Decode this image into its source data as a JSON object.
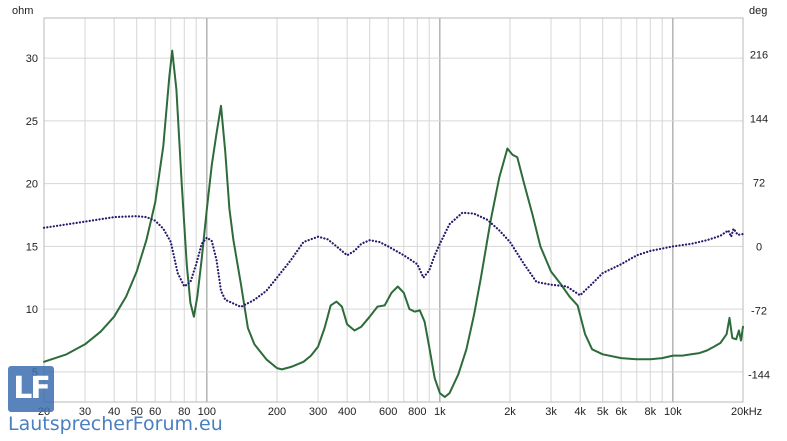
{
  "chart_data": {
    "type": "line",
    "title": "",
    "xlabel": "",
    "x_scale": "log",
    "xlim": [
      20,
      20000
    ],
    "x_ticks": [
      {
        "v": 20,
        "label": "20"
      },
      {
        "v": 30,
        "label": "30"
      },
      {
        "v": 40,
        "label": "40"
      },
      {
        "v": 50,
        "label": "50"
      },
      {
        "v": 60,
        "label": "60"
      },
      {
        "v": 80,
        "label": "80"
      },
      {
        "v": 100,
        "label": "100"
      },
      {
        "v": 200,
        "label": "200"
      },
      {
        "v": 300,
        "label": "300"
      },
      {
        "v": 400,
        "label": "400"
      },
      {
        "v": 600,
        "label": "600"
      },
      {
        "v": 800,
        "label": "800"
      },
      {
        "v": 1000,
        "label": "1k"
      },
      {
        "v": 2000,
        "label": "2k"
      },
      {
        "v": 3000,
        "label": "3k"
      },
      {
        "v": 4000,
        "label": "4k"
      },
      {
        "v": 5000,
        "label": "5k"
      },
      {
        "v": 6000,
        "label": "6k"
      },
      {
        "v": 8000,
        "label": "8k"
      },
      {
        "v": 10000,
        "label": "10k"
      },
      {
        "v": 20000,
        "label": "20kHz"
      }
    ],
    "y_left": {
      "unit": "ohm",
      "lim": [
        2.6,
        33.2
      ],
      "ticks": [
        5,
        10,
        15,
        20,
        25,
        30
      ]
    },
    "y_right": {
      "unit": "deg",
      "lim": [
        -175,
        257
      ],
      "ticks": [
        -144,
        -72,
        0,
        72,
        144,
        216
      ]
    },
    "grid": true,
    "series": [
      {
        "axis": "left",
        "color": "#2e6b3a",
        "style": "solid",
        "points": [
          [
            20,
            5.8
          ],
          [
            25,
            6.4
          ],
          [
            30,
            7.2
          ],
          [
            35,
            8.2
          ],
          [
            40,
            9.4
          ],
          [
            45,
            11.0
          ],
          [
            50,
            13.0
          ],
          [
            55,
            15.5
          ],
          [
            60,
            18.5
          ],
          [
            65,
            23.0
          ],
          [
            69,
            28.5
          ],
          [
            71,
            30.6
          ],
          [
            74,
            27.5
          ],
          [
            78,
            20.0
          ],
          [
            82,
            13.5
          ],
          [
            85,
            10.5
          ],
          [
            88,
            9.4
          ],
          [
            91,
            11.0
          ],
          [
            95,
            14.0
          ],
          [
            100,
            18.0
          ],
          [
            105,
            21.5
          ],
          [
            110,
            24.0
          ],
          [
            115,
            26.2
          ],
          [
            120,
            22.5
          ],
          [
            125,
            18.0
          ],
          [
            130,
            15.5
          ],
          [
            140,
            12.0
          ],
          [
            150,
            8.5
          ],
          [
            160,
            7.2
          ],
          [
            180,
            6.0
          ],
          [
            200,
            5.3
          ],
          [
            210,
            5.2
          ],
          [
            230,
            5.4
          ],
          [
            260,
            5.8
          ],
          [
            280,
            6.3
          ],
          [
            300,
            7.0
          ],
          [
            320,
            8.5
          ],
          [
            340,
            10.3
          ],
          [
            360,
            10.6
          ],
          [
            380,
            10.2
          ],
          [
            400,
            8.8
          ],
          [
            430,
            8.3
          ],
          [
            460,
            8.6
          ],
          [
            500,
            9.4
          ],
          [
            540,
            10.2
          ],
          [
            580,
            10.3
          ],
          [
            620,
            11.3
          ],
          [
            660,
            11.8
          ],
          [
            700,
            11.3
          ],
          [
            740,
            10.0
          ],
          [
            780,
            9.8
          ],
          [
            820,
            9.9
          ],
          [
            860,
            9.0
          ],
          [
            900,
            7.0
          ],
          [
            950,
            4.5
          ],
          [
            1000,
            3.3
          ],
          [
            1050,
            3.0
          ],
          [
            1100,
            3.3
          ],
          [
            1200,
            4.8
          ],
          [
            1300,
            6.8
          ],
          [
            1400,
            9.5
          ],
          [
            1500,
            12.5
          ],
          [
            1650,
            17.0
          ],
          [
            1800,
            20.5
          ],
          [
            1950,
            22.8
          ],
          [
            2050,
            22.3
          ],
          [
            2150,
            22.1
          ],
          [
            2300,
            20.0
          ],
          [
            2500,
            17.5
          ],
          [
            2700,
            15.0
          ],
          [
            3000,
            13.0
          ],
          [
            3300,
            12.0
          ],
          [
            3600,
            11.0
          ],
          [
            3900,
            10.3
          ],
          [
            4200,
            8.0
          ],
          [
            4500,
            6.8
          ],
          [
            5000,
            6.4
          ],
          [
            6000,
            6.1
          ],
          [
            7000,
            6.0
          ],
          [
            8000,
            6.0
          ],
          [
            9000,
            6.1
          ],
          [
            10000,
            6.3
          ],
          [
            11000,
            6.3
          ],
          [
            12000,
            6.4
          ],
          [
            13000,
            6.5
          ],
          [
            14000,
            6.7
          ],
          [
            15000,
            7.0
          ],
          [
            16000,
            7.3
          ],
          [
            17000,
            8.0
          ],
          [
            17500,
            9.3
          ],
          [
            18000,
            7.7
          ],
          [
            18700,
            7.6
          ],
          [
            19200,
            8.3
          ],
          [
            19600,
            7.5
          ],
          [
            20000,
            8.6
          ]
        ]
      },
      {
        "axis": "right",
        "color": "#2a1a6e",
        "style": "dotted",
        "points": [
          [
            20,
            21
          ],
          [
            30,
            28
          ],
          [
            40,
            33
          ],
          [
            50,
            34
          ],
          [
            55,
            33
          ],
          [
            60,
            29
          ],
          [
            65,
            20
          ],
          [
            70,
            5
          ],
          [
            75,
            -30
          ],
          [
            80,
            -45
          ],
          [
            85,
            -40
          ],
          [
            90,
            -20
          ],
          [
            95,
            3
          ],
          [
            100,
            10
          ],
          [
            105,
            6
          ],
          [
            110,
            -15
          ],
          [
            115,
            -50
          ],
          [
            120,
            -60
          ],
          [
            140,
            -68
          ],
          [
            160,
            -60
          ],
          [
            180,
            -50
          ],
          [
            200,
            -35
          ],
          [
            230,
            -15
          ],
          [
            260,
            5
          ],
          [
            300,
            11
          ],
          [
            330,
            8
          ],
          [
            360,
            0
          ],
          [
            400,
            -10
          ],
          [
            430,
            -5
          ],
          [
            460,
            3
          ],
          [
            500,
            7
          ],
          [
            550,
            5
          ],
          [
            600,
            0
          ],
          [
            700,
            -10
          ],
          [
            800,
            -20
          ],
          [
            850,
            -35
          ],
          [
            900,
            -27
          ],
          [
            950,
            -10
          ],
          [
            1000,
            3
          ],
          [
            1100,
            25
          ],
          [
            1250,
            38
          ],
          [
            1400,
            37
          ],
          [
            1600,
            30
          ],
          [
            1800,
            18
          ],
          [
            2000,
            5
          ],
          [
            2300,
            -20
          ],
          [
            2600,
            -40
          ],
          [
            3000,
            -43
          ],
          [
            3500,
            -45
          ],
          [
            4000,
            -55
          ],
          [
            4500,
            -42
          ],
          [
            5000,
            -30
          ],
          [
            6000,
            -20
          ],
          [
            7000,
            -10
          ],
          [
            8000,
            -5
          ],
          [
            10000,
            0
          ],
          [
            12000,
            3
          ],
          [
            14000,
            7
          ],
          [
            16000,
            12
          ],
          [
            17300,
            18
          ],
          [
            17800,
            11
          ],
          [
            18200,
            20
          ],
          [
            19000,
            13
          ],
          [
            20000,
            14
          ]
        ]
      }
    ]
  },
  "logo": {
    "mark": "LF",
    "text": "LautsprecherForum.eu"
  }
}
